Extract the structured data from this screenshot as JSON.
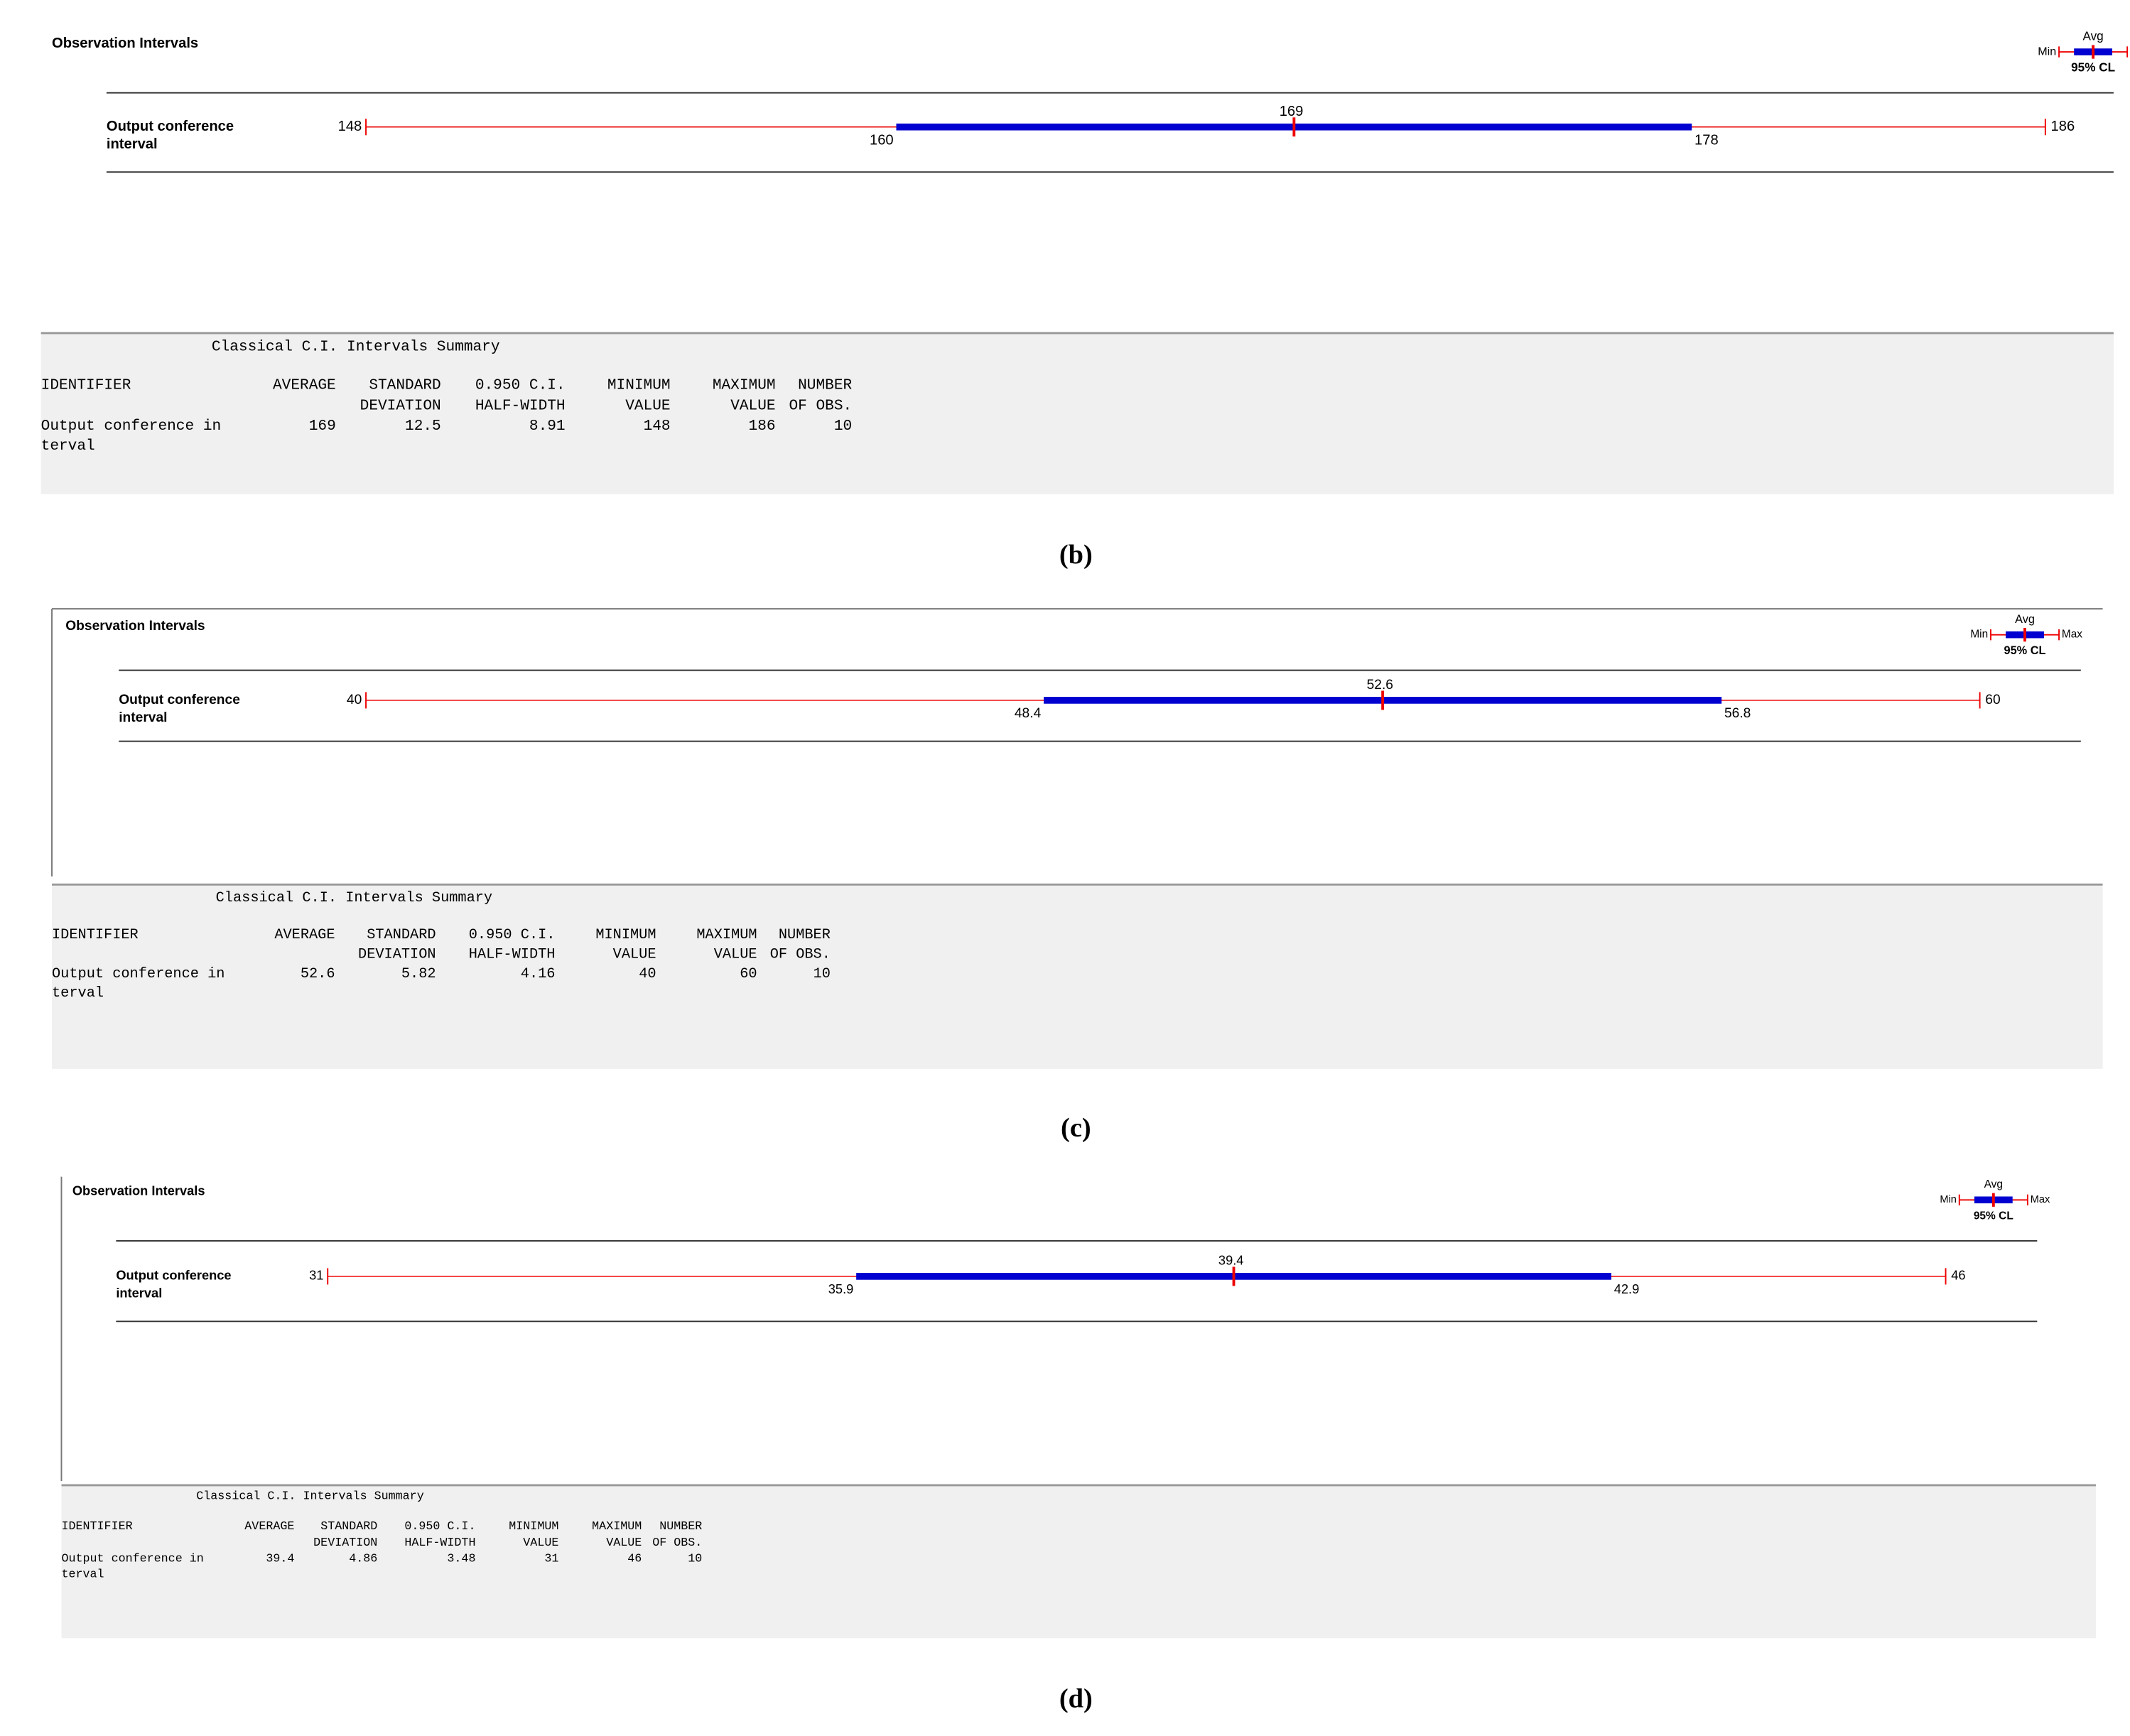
{
  "panels": [
    {
      "title": "Observation Intervals",
      "legend": {
        "avg": "Avg",
        "min": "Min",
        "cl": "95% CL"
      },
      "row_label": [
        "Output conference",
        "interval"
      ],
      "interval": {
        "min": 148,
        "ci_low": 160,
        "avg": 169,
        "ci_high": 178,
        "max": 186
      },
      "summary": {
        "title": "Classical C.I. Intervals Summary",
        "header": [
          [
            "IDENTIFIER"
          ],
          [
            "AVERAGE"
          ],
          [
            "STANDARD",
            "DEVIATION"
          ],
          [
            "0.950 C.I.",
            "HALF-WIDTH"
          ],
          [
            "MINIMUM",
            "VALUE"
          ],
          [
            "MAXIMUM",
            "VALUE"
          ],
          [
            "NUMBER",
            "OF OBS."
          ]
        ],
        "identifier": [
          "Output conference in",
          "terval"
        ],
        "cells": [
          169,
          12.5,
          8.91,
          148,
          186,
          10
        ]
      },
      "caption": "(b)"
    },
    {
      "title": "Observation Intervals",
      "legend": {
        "avg": "Avg",
        "min": "Min",
        "max": "Max",
        "cl": "95% CL"
      },
      "row_label": [
        "Output conference",
        "interval"
      ],
      "interval": {
        "min": 40,
        "ci_low": 48.4,
        "avg": 52.6,
        "ci_high": 56.8,
        "max": 60
      },
      "summary": {
        "title": "Classical C.I. Intervals Summary",
        "header": [
          [
            "IDENTIFIER"
          ],
          [
            "AVERAGE"
          ],
          [
            "STANDARD",
            "DEVIATION"
          ],
          [
            "0.950 C.I.",
            "HALF-WIDTH"
          ],
          [
            "MINIMUM",
            "VALUE"
          ],
          [
            "MAXIMUM",
            "VALUE"
          ],
          [
            "NUMBER",
            "OF OBS."
          ]
        ],
        "identifier": [
          "Output conference in",
          "terval"
        ],
        "cells": [
          52.6,
          5.82,
          4.16,
          40,
          60,
          10
        ]
      },
      "caption": "(c)"
    },
    {
      "title": "Observation Intervals",
      "legend": {
        "avg": "Avg",
        "min": "Min",
        "max": "Max",
        "cl": "95% CL"
      },
      "row_label": [
        "Output conference",
        "interval"
      ],
      "interval": {
        "min": 31,
        "ci_low": 35.9,
        "avg": 39.4,
        "ci_high": 42.9,
        "max": 46
      },
      "summary": {
        "title": "Classical C.I. Intervals Summary",
        "header": [
          [
            "IDENTIFIER"
          ],
          [
            "AVERAGE"
          ],
          [
            "STANDARD",
            "DEVIATION"
          ],
          [
            "0.950 C.I.",
            "HALF-WIDTH"
          ],
          [
            "MINIMUM",
            "VALUE"
          ],
          [
            "MAXIMUM",
            "VALUE"
          ],
          [
            "NUMBER",
            "OF OBS."
          ]
        ],
        "identifier": [
          "Output conference in",
          "terval"
        ],
        "cells": [
          39.4,
          4.86,
          3.48,
          31,
          46,
          10
        ]
      },
      "caption": "(d)"
    }
  ]
}
